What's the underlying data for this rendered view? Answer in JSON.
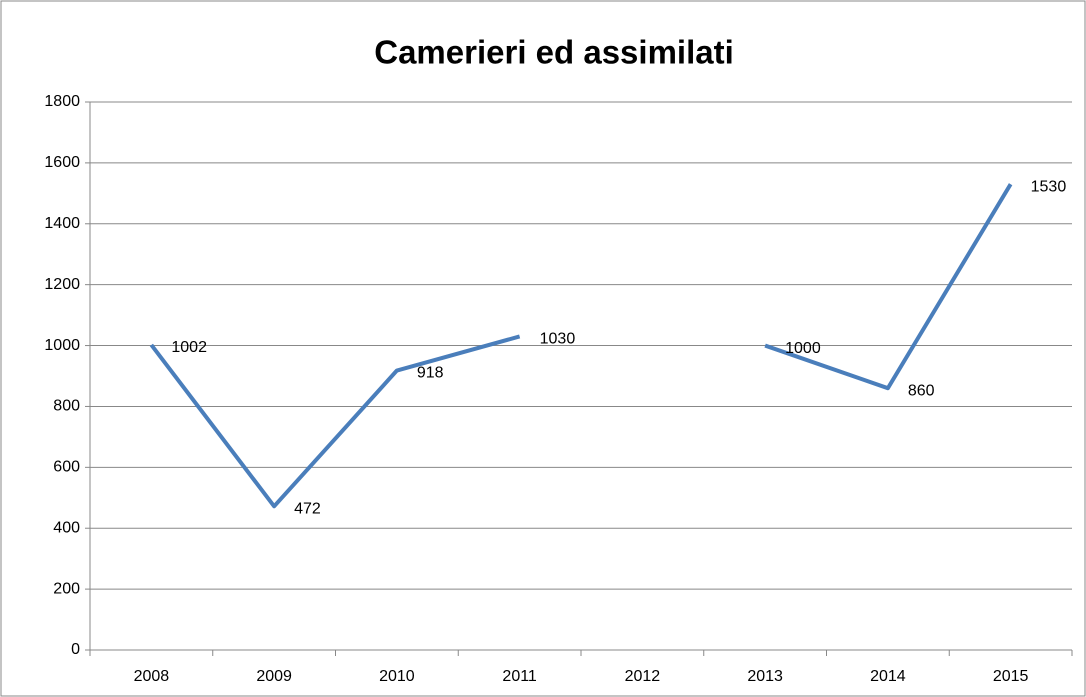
{
  "chart_data": {
    "type": "line",
    "title": "Camerieri ed assimilati",
    "categories": [
      "2008",
      "2009",
      "2010",
      "2011",
      "2012",
      "2013",
      "2014",
      "2015"
    ],
    "series": [
      {
        "name": "Camerieri ed assimilati",
        "color": "#4a7ebb",
        "values": [
          1002,
          472,
          918,
          1030,
          null,
          1000,
          860,
          1530
        ]
      }
    ],
    "ylim": [
      0,
      1800
    ],
    "yticks": [
      0,
      200,
      400,
      600,
      800,
      1000,
      1200,
      1400,
      1600,
      1800
    ],
    "grid": true
  }
}
